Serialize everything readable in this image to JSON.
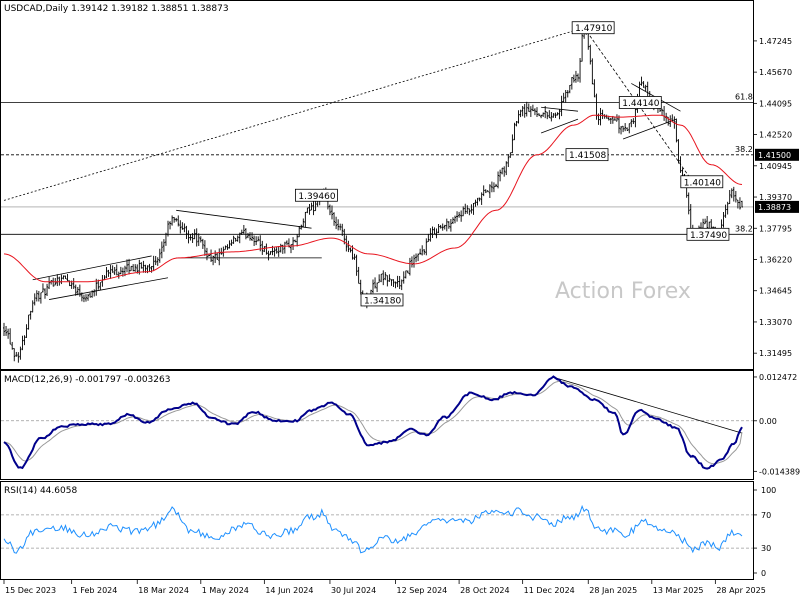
{
  "header": {
    "main": "USDCAD,Daily  1.39142 1.39182 1.38851 1.38873",
    "macd": "MACD(12,26,9) -0.001797 -0.003263",
    "rsi": "RSI(14) 44.6058"
  },
  "watermark": "Action Forex",
  "colors": {
    "price": "#000000",
    "ma": "#e8141e",
    "macd_main": "#00008b",
    "macd_signal": "#999999",
    "rsi": "#1e90ff",
    "grid": "#d8d8d8"
  },
  "chart_data": [
    {
      "type": "candlestick",
      "title": "USDCAD,Daily",
      "ohlc_last": {
        "open": 1.39142,
        "high": 1.39182,
        "low": 1.38851,
        "close": 1.38873
      },
      "ylim": [
        1.3105,
        1.484
      ],
      "y_ticks": [
        "1.47245",
        "1.45670",
        "1.44095",
        "1.42520",
        "1.40945",
        "1.39370",
        "1.37795",
        "1.36220",
        "1.34645",
        "1.33070",
        "1.31495"
      ],
      "x_ticks": [
        "15 Dec 2023",
        "1 Feb 2024",
        "18 Mar 2024",
        "1 May 2024",
        "14 Jun 2024",
        "30 Jul 2024",
        "12 Sep 2024",
        "28 Oct 2024",
        "11 Dec 2024",
        "28 Jan 2025",
        "13 Mar 2025",
        "28 Apr 2025"
      ],
      "x_tick_index": [
        0,
        33,
        65,
        96,
        127,
        159,
        191,
        222,
        253,
        285,
        316,
        347
      ],
      "bars": 361,
      "anchors": [
        [
          0,
          1.328
        ],
        [
          6,
          1.314
        ],
        [
          16,
          1.344
        ],
        [
          28,
          1.353
        ],
        [
          40,
          1.344
        ],
        [
          52,
          1.356
        ],
        [
          64,
          1.358
        ],
        [
          74,
          1.36
        ],
        [
          82,
          1.382
        ],
        [
          92,
          1.374
        ],
        [
          102,
          1.363
        ],
        [
          118,
          1.375
        ],
        [
          130,
          1.366
        ],
        [
          140,
          1.37
        ],
        [
          150,
          1.388
        ],
        [
          155,
          1.3946
        ],
        [
          163,
          1.378
        ],
        [
          170,
          1.365
        ],
        [
          175,
          1.3418
        ],
        [
          184,
          1.353
        ],
        [
          193,
          1.35
        ],
        [
          200,
          1.362
        ],
        [
          212,
          1.378
        ],
        [
          225,
          1.386
        ],
        [
          238,
          1.398
        ],
        [
          244,
          1.408
        ],
        [
          252,
          1.438
        ],
        [
          268,
          1.435
        ],
        [
          280,
          1.455
        ],
        [
          283,
          1.4791
        ],
        [
          290,
          1.434
        ],
        [
          298,
          1.433
        ],
        [
          302,
          1.427
        ],
        [
          306,
          1.43
        ],
        [
          311,
          1.451
        ],
        [
          318,
          1.438
        ],
        [
          326,
          1.432
        ],
        [
          331,
          1.403
        ],
        [
          336,
          1.376
        ],
        [
          343,
          1.38
        ],
        [
          348,
          1.3749
        ],
        [
          355,
          1.395
        ],
        [
          360,
          1.3887
        ]
      ],
      "ma_anchors": [
        [
          0,
          1.365
        ],
        [
          20,
          1.351
        ],
        [
          40,
          1.351
        ],
        [
          70,
          1.356
        ],
        [
          85,
          1.363
        ],
        [
          110,
          1.366
        ],
        [
          140,
          1.369
        ],
        [
          160,
          1.373
        ],
        [
          178,
          1.365
        ],
        [
          200,
          1.36
        ],
        [
          220,
          1.368
        ],
        [
          240,
          1.387
        ],
        [
          260,
          1.415
        ],
        [
          278,
          1.43
        ],
        [
          288,
          1.435
        ],
        [
          300,
          1.434
        ],
        [
          320,
          1.435
        ],
        [
          330,
          1.43
        ],
        [
          345,
          1.41
        ],
        [
          360,
          1.4
        ]
      ],
      "labels": [
        {
          "text": "1.47910",
          "bar": 283,
          "value": 1.4791
        },
        {
          "text": "1.44140",
          "bar": 306,
          "value": 1.4414
        },
        {
          "text": "1.41508",
          "bar": 280,
          "value": 1.41508
        },
        {
          "text": "1.40140",
          "bar": 336,
          "value": 1.4014
        },
        {
          "text": "1.39460",
          "bar": 148,
          "value": 1.3946
        },
        {
          "text": "1.37490",
          "bar": 339,
          "value": 1.3749
        },
        {
          "text": "1.34180",
          "bar": 180,
          "value": 1.3418
        }
      ],
      "hlines": [
        {
          "value": 1.4414,
          "label": "61.8",
          "style": "solid"
        },
        {
          "value": 1.415,
          "label": "38.2",
          "style": "dashed",
          "tag": "1.41500"
        },
        {
          "value": 1.3749,
          "label": "38.2",
          "style": "solid"
        },
        {
          "value": 1.38873,
          "label": "",
          "style": "solid",
          "tag": "1.38873"
        }
      ],
      "moving_average": "red line"
    },
    {
      "type": "line",
      "title": "MACD(12,26,9)",
      "series": [
        {
          "name": "MACD",
          "last": -0.001797
        },
        {
          "name": "Signal",
          "last": -0.003263
        }
      ],
      "ylim": [
        -0.016,
        0.0136
      ],
      "y_ticks": [
        "0.012472",
        "0.00",
        "-0.014389"
      ],
      "anchors": [
        [
          0,
          -0.006
        ],
        [
          8,
          -0.0135
        ],
        [
          18,
          -0.005
        ],
        [
          28,
          -0.0015
        ],
        [
          40,
          -0.001
        ],
        [
          52,
          -0.001
        ],
        [
          60,
          0.0018
        ],
        [
          70,
          -0.0005
        ],
        [
          80,
          0.003
        ],
        [
          92,
          0.005
        ],
        [
          102,
          0.0005
        ],
        [
          112,
          -0.001
        ],
        [
          122,
          0.0025
        ],
        [
          132,
          0.0
        ],
        [
          142,
          0.0
        ],
        [
          150,
          0.003
        ],
        [
          160,
          0.005
        ],
        [
          168,
          0.002
        ],
        [
          178,
          -0.007
        ],
        [
          188,
          -0.006
        ],
        [
          198,
          -0.0025
        ],
        [
          206,
          -0.004
        ],
        [
          215,
          0.001
        ],
        [
          228,
          0.008
        ],
        [
          238,
          0.006
        ],
        [
          248,
          0.008
        ],
        [
          258,
          0.0072
        ],
        [
          268,
          0.0124
        ],
        [
          275,
          0.01
        ],
        [
          288,
          0.006
        ],
        [
          298,
          0.002
        ],
        [
          302,
          -0.004
        ],
        [
          310,
          0.003
        ],
        [
          318,
          0.0005
        ],
        [
          328,
          -0.002
        ],
        [
          335,
          -0.01
        ],
        [
          343,
          -0.0135
        ],
        [
          350,
          -0.011
        ],
        [
          356,
          -0.0065
        ],
        [
          360,
          -0.0018
        ]
      ]
    },
    {
      "type": "line",
      "title": "RSI(14)",
      "series": [
        {
          "name": "RSI(14)",
          "last": 44.6058
        }
      ],
      "ylim": [
        0,
        100
      ],
      "y_ticks": [
        "100",
        "70",
        "30",
        "0"
      ],
      "levels": [
        70,
        30
      ],
      "anchors": [
        [
          0,
          40
        ],
        [
          6,
          28
        ],
        [
          16,
          52
        ],
        [
          28,
          55
        ],
        [
          40,
          46
        ],
        [
          52,
          56
        ],
        [
          64,
          50
        ],
        [
          74,
          58
        ],
        [
          82,
          77
        ],
        [
          92,
          50
        ],
        [
          102,
          42
        ],
        [
          118,
          58
        ],
        [
          130,
          45
        ],
        [
          140,
          50
        ],
        [
          150,
          68
        ],
        [
          155,
          72
        ],
        [
          163,
          48
        ],
        [
          170,
          40
        ],
        [
          175,
          25
        ],
        [
          184,
          42
        ],
        [
          193,
          38
        ],
        [
          200,
          50
        ],
        [
          212,
          63
        ],
        [
          225,
          62
        ],
        [
          238,
          72
        ],
        [
          244,
          70
        ],
        [
          252,
          75
        ],
        [
          258,
          68
        ],
        [
          268,
          60
        ],
        [
          275,
          66
        ],
        [
          280,
          70
        ],
        [
          283,
          78
        ],
        [
          290,
          52
        ],
        [
          298,
          50
        ],
        [
          302,
          45
        ],
        [
          306,
          50
        ],
        [
          311,
          62
        ],
        [
          318,
          55
        ],
        [
          326,
          50
        ],
        [
          331,
          40
        ],
        [
          336,
          28
        ],
        [
          343,
          38
        ],
        [
          348,
          30
        ],
        [
          355,
          50
        ],
        [
          360,
          44.6
        ]
      ]
    }
  ]
}
